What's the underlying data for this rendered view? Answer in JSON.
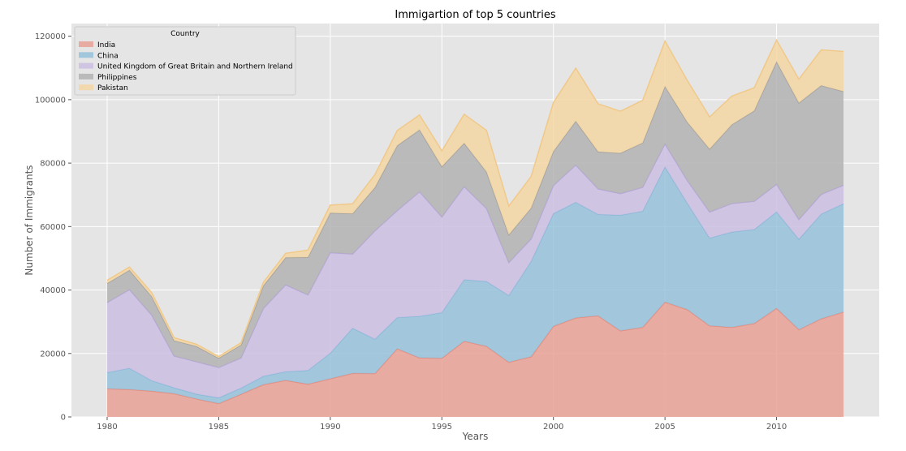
{
  "chart_data": {
    "type": "area",
    "title": "Immigartion of top 5 countries",
    "xlabel": "Years",
    "ylabel": "Number of Immigrants",
    "stacked": true,
    "xlim": [
      1978.4,
      2014.6
    ],
    "ylim": [
      0,
      124000
    ],
    "x_ticks": [
      1980,
      1985,
      1990,
      1995,
      2000,
      2005,
      2010
    ],
    "y_ticks": [
      0,
      20000,
      40000,
      60000,
      80000,
      100000,
      120000
    ],
    "grid": true,
    "legend": {
      "title": "Country",
      "position": "top-left"
    },
    "x": [
      1980,
      1981,
      1982,
      1983,
      1984,
      1985,
      1986,
      1987,
      1988,
      1989,
      1990,
      1991,
      1992,
      1993,
      1994,
      1995,
      1996,
      1997,
      1998,
      1999,
      2000,
      2001,
      2002,
      2003,
      2004,
      2005,
      2006,
      2007,
      2008,
      2009,
      2010,
      2011,
      2012,
      2013
    ],
    "series": [
      {
        "name": "India",
        "color": "#e8a195",
        "line_color": "#e88a7c",
        "values": [
          8880,
          8670,
          8147,
          7338,
          5704,
          4211,
          7150,
          10189,
          11522,
          10343,
          12041,
          13734,
          13673,
          21496,
          18620,
          18489,
          23859,
          22268,
          17241,
          18974,
          28572,
          31223,
          31889,
          27155,
          28235,
          36210,
          33848,
          28742,
          28261,
          29456,
          34235,
          27509,
          30933,
          33087
        ]
      },
      {
        "name": "China",
        "color": "#97c2db",
        "line_color": "#89b8d8",
        "values": [
          5123,
          6682,
          3308,
          1863,
          1527,
          1816,
          1960,
          2643,
          2758,
          4323,
          8076,
          14255,
          10846,
          9817,
          13128,
          14398,
          19415,
          20475,
          21049,
          30069,
          35529,
          36434,
          31961,
          36439,
          36619,
          42584,
          33518,
          27642,
          30037,
          29622,
          30391,
          28502,
          33024,
          34129
        ]
      },
      {
        "name": "United Kingdom of Great Britain and Northern Ireland",
        "color": "#cbbfe3",
        "line_color": "#b7a7dc",
        "values": [
          22045,
          24796,
          20620,
          10015,
          10170,
          9564,
          9470,
          21337,
          27359,
          23795,
          31668,
          23380,
          34123,
          33720,
          39231,
          30145,
          29322,
          22965,
          10367,
          7045,
          8840,
          11728,
          8046,
          6797,
          7533,
          7258,
          7140,
          8216,
          8979,
          8876,
          8724,
          6204,
          6195,
          5827
        ]
      },
      {
        "name": "Philippines",
        "color": "#b3b3b3",
        "line_color": "#a0a0a0",
        "values": [
          6051,
          6125,
          5874,
          4850,
          4863,
          2940,
          4115,
          7171,
          8597,
          11868,
          12509,
          12718,
          13670,
          20479,
          19532,
          15864,
          13692,
          11549,
          8735,
          9734,
          10763,
          13836,
          11707,
          12758,
          14004,
          18139,
          18400,
          19837,
          24887,
          28573,
          38617,
          36765,
          34315,
          29544
        ]
      },
      {
        "name": "Pakistan",
        "color": "#f5d7a3",
        "line_color": "#f0c98a",
        "values": [
          978,
          972,
          1201,
          900,
          668,
          514,
          691,
          1072,
          1334,
          2261,
          2470,
          3079,
          4071,
          4777,
          4666,
          4994,
          9125,
          13073,
          9068,
          9979,
          15400,
          16708,
          15110,
          13205,
          13399,
          14314,
          13127,
          10124,
          8994,
          7217,
          6811,
          7468,
          11227,
          12603
        ]
      }
    ]
  }
}
